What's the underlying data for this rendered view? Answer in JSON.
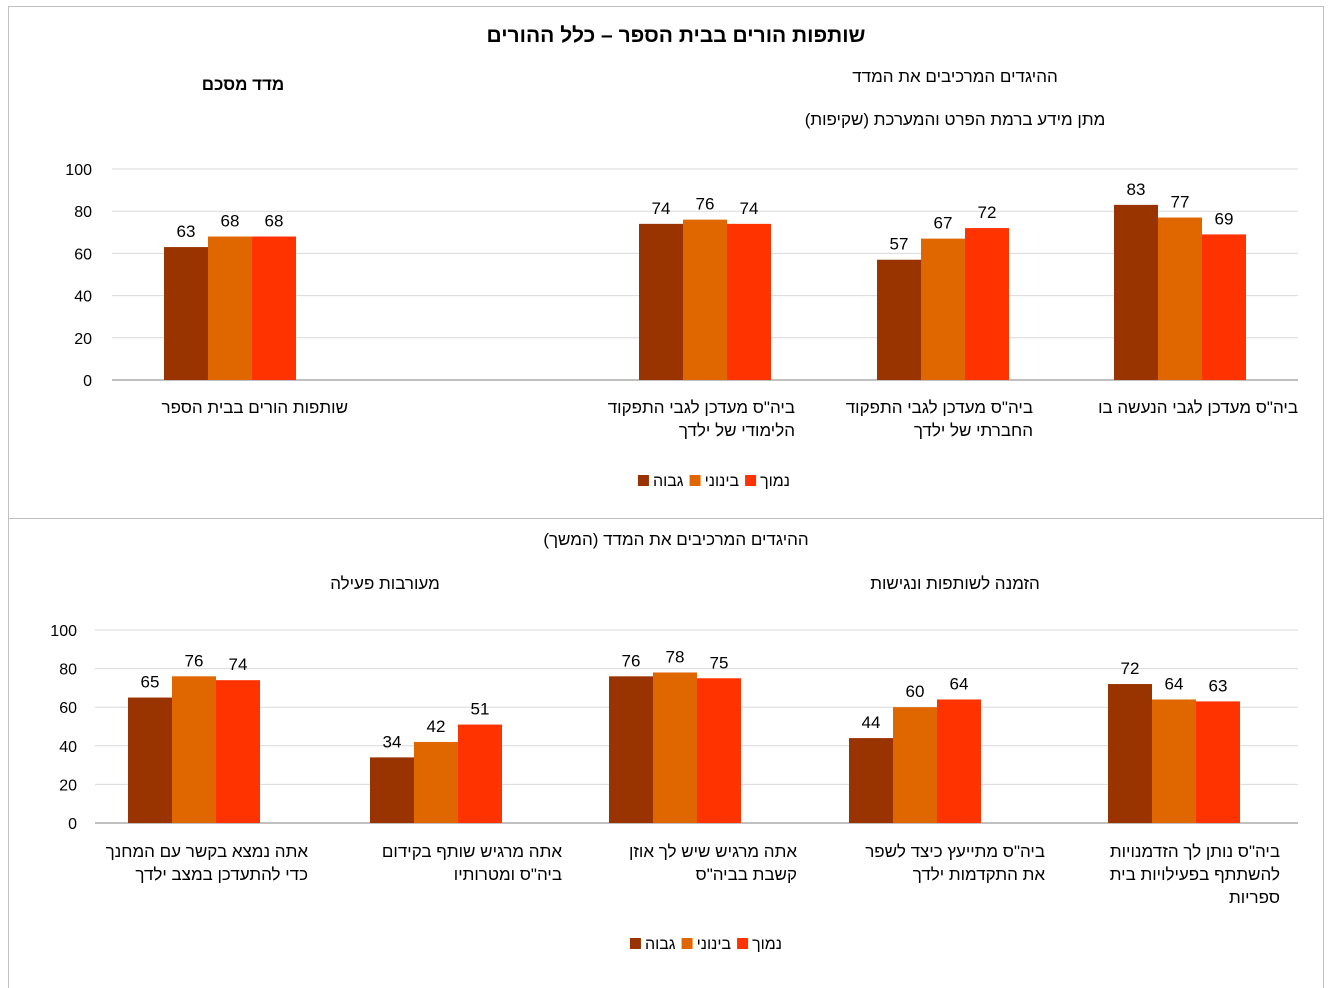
{
  "colors": {
    "high": "#993300",
    "medium": "#E06600",
    "low": "#FF3300",
    "grid": "#d9d9d9",
    "axis": "#808080"
  },
  "top": {
    "title": "שותפות הורים בבית הספר – כלל ההורים",
    "section_label": "ההיגדים המרכיבים את המדד",
    "subsection_label": "מתן מידע ברמת הפרט והמערכת (שקיפות)",
    "summary_label": "מדד מסכם",
    "legend": [
      "נמוך",
      "בינוני",
      "גבוה"
    ]
  },
  "bottom": {
    "section_label": "ההיגדים המרכיבים את המדד (המשך)",
    "group1_label": "הזמנה לשותפות ונגישות",
    "group2_label": "מעורבות פעילה",
    "legend": [
      "נמוך",
      "בינוני",
      "גבוה"
    ]
  },
  "chart_data": [
    {
      "type": "bar",
      "ylim": [
        0,
        100
      ],
      "yticks": [
        0,
        20,
        40,
        60,
        80,
        100
      ],
      "grid": true,
      "legend_position": "bottom",
      "series_names": [
        "גבוה",
        "בינוני",
        "נמוך"
      ],
      "categories": [
        {
          "label_lines": [
            "ביה\"ס מעדכן לגבי הנעשה בו"
          ],
          "values": [
            83,
            77,
            69
          ]
        },
        {
          "label_lines": [
            "ביה\"ס מעדכן לגבי התפקוד",
            "החברתי של ילדך"
          ],
          "values": [
            57,
            67,
            72
          ]
        },
        {
          "label_lines": [
            "ביה\"ס מעדכן לגבי התפקוד",
            "הלימודי של ילדך"
          ],
          "values": [
            74,
            76,
            74
          ]
        },
        {
          "label_lines": [
            "שותפות הורים בבית הספר"
          ],
          "values": [
            63,
            68,
            68
          ]
        }
      ]
    },
    {
      "type": "bar",
      "ylim": [
        0,
        100
      ],
      "yticks": [
        0,
        20,
        40,
        60,
        80,
        100
      ],
      "grid": true,
      "legend_position": "bottom",
      "series_names": [
        "גבוה",
        "בינוני",
        "נמוך"
      ],
      "categories": [
        {
          "label_lines": [
            "ביה\"ס נותן לך הזדמנויות",
            "להשתתף בפעילויות בית",
            "ספריות"
          ],
          "values": [
            72,
            64,
            63
          ]
        },
        {
          "label_lines": [
            "ביה\"ס מתייעץ כיצד לשפר",
            "את התקדמות ילדך"
          ],
          "values": [
            44,
            60,
            64
          ]
        },
        {
          "label_lines": [
            "אתה מרגיש שיש לך אוזן",
            "קשבת בביה\"ס"
          ],
          "values": [
            76,
            78,
            75
          ]
        },
        {
          "label_lines": [
            "אתה מרגיש שותף בקידום",
            "ביה\"ס ומטרותיו"
          ],
          "values": [
            34,
            42,
            51
          ]
        },
        {
          "label_lines": [
            "אתה נמצא בקשר עם המחנך",
            "כדי להתעדכן במצב ילדך"
          ],
          "values": [
            65,
            76,
            74
          ]
        }
      ]
    }
  ]
}
